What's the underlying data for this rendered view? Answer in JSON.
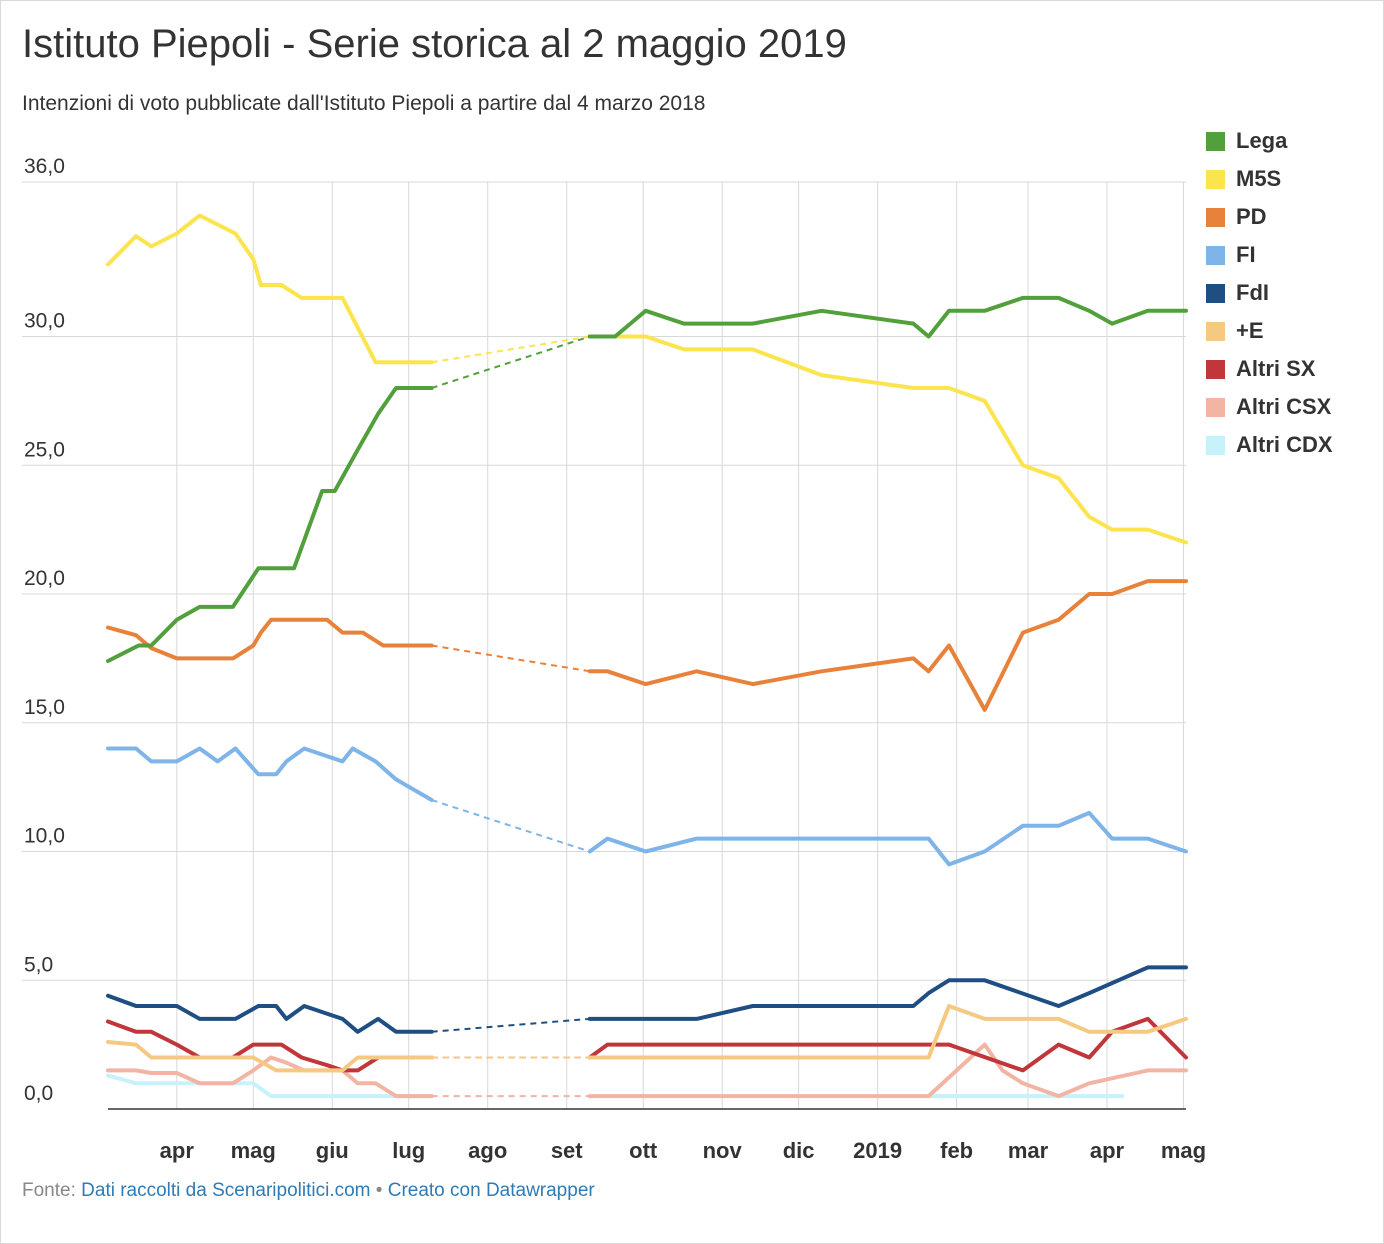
{
  "title": "Istituto Piepoli - Serie storica al 2 maggio 2019",
  "subtitle": "Intenzioni di voto pubblicate dall'Istituto Piepoli a partire dal 4 marzo 2018",
  "footer": {
    "prefix": "Fonte:",
    "source": "Dati raccolti da Scenaripolitici.com",
    "separator": "•",
    "credit": "Creato con Datawrapper"
  },
  "chart_data": {
    "type": "line",
    "title": "Istituto Piepoli - Serie storica al 2 maggio 2019",
    "xlabel": "",
    "ylabel": "",
    "ylim": [
      0,
      36
    ],
    "xlim": [
      "2018-03-05",
      "2019-05-02"
    ],
    "y_ticks": [
      {
        "value": 0,
        "label": "0,0"
      },
      {
        "value": 5,
        "label": "5,0"
      },
      {
        "value": 10,
        "label": "10,0"
      },
      {
        "value": 15,
        "label": "15,0"
      },
      {
        "value": 20,
        "label": "20,0"
      },
      {
        "value": 25,
        "label": "25,0"
      },
      {
        "value": 30,
        "label": "30,0"
      },
      {
        "value": 36,
        "label": "36,0"
      }
    ],
    "x_ticks": [
      {
        "date": "2018-04-01",
        "label": "apr"
      },
      {
        "date": "2018-05-01",
        "label": "mag"
      },
      {
        "date": "2018-06-01",
        "label": "giu"
      },
      {
        "date": "2018-07-01",
        "label": "lug"
      },
      {
        "date": "2018-08-01",
        "label": "ago"
      },
      {
        "date": "2018-09-01",
        "label": "set"
      },
      {
        "date": "2018-10-01",
        "label": "ott"
      },
      {
        "date": "2018-11-01",
        "label": "nov"
      },
      {
        "date": "2018-12-01",
        "label": "dic"
      },
      {
        "date": "2019-01-01",
        "label": "2019"
      },
      {
        "date": "2019-02-01",
        "label": "feb"
      },
      {
        "date": "2019-03-01",
        "label": "mar"
      },
      {
        "date": "2019-04-01",
        "label": "apr"
      },
      {
        "date": "2019-05-01",
        "label": "mag"
      }
    ],
    "gridlines": true,
    "legend_position": "right",
    "gap_style": "dashed",
    "series": [
      {
        "name": "Lega",
        "color": "#51a03c",
        "points": [
          [
            "2018-03-05",
            17.4
          ],
          [
            "2018-03-17",
            18
          ],
          [
            "2018-03-22",
            18
          ],
          [
            "2018-04-01",
            19
          ],
          [
            "2018-04-10",
            19.5
          ],
          [
            "2018-04-23",
            19.5
          ],
          [
            "2018-05-03",
            21
          ],
          [
            "2018-05-17",
            21
          ],
          [
            "2018-05-28",
            24
          ],
          [
            "2018-06-02",
            24
          ],
          [
            "2018-06-11",
            25.6
          ],
          [
            "2018-06-19",
            27
          ],
          [
            "2018-06-26",
            28
          ],
          [
            "2018-07-10",
            28
          ],
          [
            "2018-09-10",
            30
          ],
          [
            "2018-09-20",
            30
          ],
          [
            "2018-10-02",
            31
          ],
          [
            "2018-10-17",
            30.5
          ],
          [
            "2018-11-13",
            30.5
          ],
          [
            "2018-12-10",
            31
          ],
          [
            "2019-01-15",
            30.5
          ],
          [
            "2019-01-21",
            30
          ],
          [
            "2019-01-29",
            31
          ],
          [
            "2019-02-12",
            31
          ],
          [
            "2019-02-27",
            31.5
          ],
          [
            "2019-03-13",
            31.5
          ],
          [
            "2019-03-25",
            31
          ],
          [
            "2019-04-03",
            30.5
          ],
          [
            "2019-04-17",
            31
          ],
          [
            "2019-05-02",
            31
          ]
        ]
      },
      {
        "name": "M5S",
        "color": "#fbe44d",
        "points": [
          [
            "2018-03-05",
            32.8
          ],
          [
            "2018-03-16",
            33.9
          ],
          [
            "2018-03-22",
            33.5
          ],
          [
            "2018-04-01",
            34
          ],
          [
            "2018-04-10",
            34.7
          ],
          [
            "2018-04-24",
            34
          ],
          [
            "2018-05-01",
            33
          ],
          [
            "2018-05-04",
            32
          ],
          [
            "2018-05-12",
            32
          ],
          [
            "2018-05-20",
            31.5
          ],
          [
            "2018-06-05",
            31.5
          ],
          [
            "2018-06-18",
            29
          ],
          [
            "2018-07-10",
            29
          ],
          [
            "2018-09-10",
            30
          ],
          [
            "2018-10-02",
            30
          ],
          [
            "2018-10-17",
            29.5
          ],
          [
            "2018-11-13",
            29.5
          ],
          [
            "2018-12-10",
            28.5
          ],
          [
            "2019-01-15",
            28
          ],
          [
            "2019-01-29",
            28
          ],
          [
            "2019-02-12",
            27.5
          ],
          [
            "2019-02-27",
            25
          ],
          [
            "2019-03-13",
            24.5
          ],
          [
            "2019-03-25",
            23
          ],
          [
            "2019-04-03",
            22.5
          ],
          [
            "2019-04-17",
            22.5
          ],
          [
            "2019-05-02",
            22
          ]
        ]
      },
      {
        "name": "PD",
        "color": "#e8823a",
        "points": [
          [
            "2018-03-05",
            18.7
          ],
          [
            "2018-03-16",
            18.4
          ],
          [
            "2018-03-22",
            17.9
          ],
          [
            "2018-04-01",
            17.5
          ],
          [
            "2018-04-23",
            17.5
          ],
          [
            "2018-05-01",
            18
          ],
          [
            "2018-05-04",
            18.5
          ],
          [
            "2018-05-08",
            19
          ],
          [
            "2018-05-30",
            19
          ],
          [
            "2018-06-05",
            18.5
          ],
          [
            "2018-06-13",
            18.5
          ],
          [
            "2018-06-21",
            18
          ],
          [
            "2018-07-10",
            18
          ],
          [
            "2018-09-10",
            17
          ],
          [
            "2018-09-17",
            17
          ],
          [
            "2018-10-02",
            16.5
          ],
          [
            "2018-10-22",
            17
          ],
          [
            "2018-11-13",
            16.5
          ],
          [
            "2018-12-10",
            17
          ],
          [
            "2019-01-15",
            17.5
          ],
          [
            "2019-01-21",
            17
          ],
          [
            "2019-01-29",
            18
          ],
          [
            "2019-02-12",
            15.5
          ],
          [
            "2019-02-27",
            18.5
          ],
          [
            "2019-03-13",
            19
          ],
          [
            "2019-03-25",
            20
          ],
          [
            "2019-04-03",
            20
          ],
          [
            "2019-04-17",
            20.5
          ],
          [
            "2019-05-02",
            20.5
          ]
        ]
      },
      {
        "name": "FI",
        "color": "#7eb4e8",
        "points": [
          [
            "2018-03-05",
            14
          ],
          [
            "2018-03-16",
            14
          ],
          [
            "2018-03-22",
            13.5
          ],
          [
            "2018-04-01",
            13.5
          ],
          [
            "2018-04-10",
            14
          ],
          [
            "2018-04-17",
            13.5
          ],
          [
            "2018-04-24",
            14
          ],
          [
            "2018-05-03",
            13
          ],
          [
            "2018-05-10",
            13
          ],
          [
            "2018-05-14",
            13.5
          ],
          [
            "2018-05-21",
            14
          ],
          [
            "2018-06-05",
            13.5
          ],
          [
            "2018-06-09",
            14
          ],
          [
            "2018-06-18",
            13.5
          ],
          [
            "2018-06-26",
            12.8
          ],
          [
            "2018-07-10",
            12
          ],
          [
            "2018-09-10",
            10
          ],
          [
            "2018-09-17",
            10.5
          ],
          [
            "2018-10-02",
            10
          ],
          [
            "2018-10-22",
            10.5
          ],
          [
            "2019-01-21",
            10.5
          ],
          [
            "2019-01-29",
            9.5
          ],
          [
            "2019-02-12",
            10
          ],
          [
            "2019-02-27",
            11
          ],
          [
            "2019-03-13",
            11
          ],
          [
            "2019-03-25",
            11.5
          ],
          [
            "2019-04-03",
            10.5
          ],
          [
            "2019-04-17",
            10.5
          ],
          [
            "2019-05-02",
            10
          ]
        ]
      },
      {
        "name": "FdI",
        "color": "#1e4e82",
        "points": [
          [
            "2018-03-05",
            4.4
          ],
          [
            "2018-03-16",
            4
          ],
          [
            "2018-03-22",
            4
          ],
          [
            "2018-04-01",
            4
          ],
          [
            "2018-04-10",
            3.5
          ],
          [
            "2018-04-24",
            3.5
          ],
          [
            "2018-05-03",
            4
          ],
          [
            "2018-05-10",
            4
          ],
          [
            "2018-05-14",
            3.5
          ],
          [
            "2018-05-21",
            4
          ],
          [
            "2018-06-05",
            3.5
          ],
          [
            "2018-06-11",
            3
          ],
          [
            "2018-06-19",
            3.5
          ],
          [
            "2018-06-26",
            3
          ],
          [
            "2018-07-10",
            3
          ],
          [
            "2018-09-10",
            3.5
          ],
          [
            "2018-10-22",
            3.5
          ],
          [
            "2018-11-13",
            4
          ],
          [
            "2019-01-15",
            4
          ],
          [
            "2019-01-21",
            4.5
          ],
          [
            "2019-01-29",
            5
          ],
          [
            "2019-02-12",
            5
          ],
          [
            "2019-03-13",
            4
          ],
          [
            "2019-03-25",
            4.5
          ],
          [
            "2019-04-17",
            5.5
          ],
          [
            "2019-05-02",
            5.5
          ]
        ]
      },
      {
        "name": "+E",
        "color": "#f6c982",
        "points": [
          [
            "2018-03-05",
            2.6
          ],
          [
            "2018-03-16",
            2.5
          ],
          [
            "2018-03-22",
            2
          ],
          [
            "2018-04-23",
            2
          ],
          [
            "2018-05-01",
            2
          ],
          [
            "2018-05-10",
            1.5
          ],
          [
            "2018-06-05",
            1.5
          ],
          [
            "2018-06-11",
            2
          ],
          [
            "2018-07-10",
            2
          ],
          [
            "2018-09-10",
            2
          ],
          [
            "2019-01-21",
            2
          ],
          [
            "2019-01-29",
            4
          ],
          [
            "2019-02-12",
            3.5
          ],
          [
            "2019-03-13",
            3.5
          ],
          [
            "2019-03-25",
            3
          ],
          [
            "2019-04-17",
            3
          ],
          [
            "2019-05-02",
            3.5
          ]
        ]
      },
      {
        "name": "Altri SX",
        "color": "#c0363a",
        "points": [
          [
            "2018-03-05",
            3.4
          ],
          [
            "2018-03-16",
            3
          ],
          [
            "2018-03-22",
            3
          ],
          [
            "2018-04-01",
            2.5
          ],
          [
            "2018-04-10",
            2
          ],
          [
            "2018-04-23",
            2
          ],
          [
            "2018-05-01",
            2.5
          ],
          [
            "2018-05-12",
            2.5
          ],
          [
            "2018-05-20",
            2
          ],
          [
            "2018-05-30",
            1.7
          ],
          [
            "2018-06-05",
            1.5
          ],
          [
            "2018-06-11",
            1.5
          ],
          [
            "2018-06-19",
            2
          ],
          [
            "2018-07-10",
            2
          ],
          [
            "2018-09-10",
            2
          ],
          [
            "2018-09-17",
            2.5
          ],
          [
            "2019-01-29",
            2.5
          ],
          [
            "2019-02-27",
            1.5
          ],
          [
            "2019-03-13",
            2.5
          ],
          [
            "2019-03-25",
            2
          ],
          [
            "2019-04-03",
            3
          ],
          [
            "2019-04-17",
            3.5
          ],
          [
            "2019-05-02",
            2
          ]
        ]
      },
      {
        "name": "Altri CSX",
        "color": "#f2b5a3",
        "points": [
          [
            "2018-03-05",
            1.5
          ],
          [
            "2018-03-16",
            1.5
          ],
          [
            "2018-03-22",
            1.4
          ],
          [
            "2018-04-01",
            1.4
          ],
          [
            "2018-04-10",
            1
          ],
          [
            "2018-04-23",
            1
          ],
          [
            "2018-05-01",
            1.5
          ],
          [
            "2018-05-08",
            2
          ],
          [
            "2018-05-14",
            1.8
          ],
          [
            "2018-05-21",
            1.5
          ],
          [
            "2018-06-05",
            1.5
          ],
          [
            "2018-06-11",
            1
          ],
          [
            "2018-06-18",
            1
          ],
          [
            "2018-06-26",
            0.5
          ],
          [
            "2018-07-10",
            0.5
          ],
          [
            "2018-09-10",
            0.5
          ],
          [
            "2019-01-21",
            0.5
          ],
          [
            "2019-02-12",
            2.5
          ],
          [
            "2019-02-19",
            1.5
          ],
          [
            "2019-02-27",
            1
          ],
          [
            "2019-03-13",
            0.5
          ],
          [
            "2019-03-25",
            1
          ],
          [
            "2019-04-17",
            1.5
          ],
          [
            "2019-05-02",
            1.5
          ]
        ]
      },
      {
        "name": "Altri CDX",
        "color": "#c7f1fb",
        "points": [
          [
            "2018-03-05",
            1.3
          ],
          [
            "2018-03-16",
            1
          ],
          [
            "2018-04-23",
            1
          ],
          [
            "2018-05-01",
            1
          ],
          [
            "2018-05-08",
            0.5
          ],
          [
            "2018-07-10",
            0.5
          ],
          [
            "2019-01-21",
            0.5
          ],
          [
            "2019-04-07",
            0.5
          ]
        ]
      }
    ]
  }
}
